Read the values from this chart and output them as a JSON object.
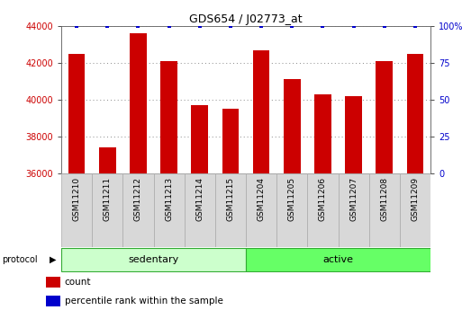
{
  "title": "GDS654 / J02773_at",
  "samples": [
    "GSM11210",
    "GSM11211",
    "GSM11212",
    "GSM11213",
    "GSM11214",
    "GSM11215",
    "GSM11204",
    "GSM11205",
    "GSM11206",
    "GSM11207",
    "GSM11208",
    "GSM11209"
  ],
  "counts": [
    42500,
    37400,
    43600,
    42100,
    39700,
    39500,
    42700,
    41100,
    40300,
    40200,
    42100,
    42500
  ],
  "percentile_ranks": [
    100,
    100,
    100,
    100,
    100,
    100,
    100,
    100,
    100,
    100,
    100,
    100
  ],
  "ylim_left": [
    36000,
    44000
  ],
  "ylim_right": [
    0,
    100
  ],
  "yticks_left": [
    36000,
    38000,
    40000,
    42000,
    44000
  ],
  "yticks_right": [
    0,
    25,
    50,
    75,
    100
  ],
  "bar_color": "#cc0000",
  "dot_color": "#0000cc",
  "groups": [
    {
      "label": "sedentary",
      "start": 0,
      "end": 6,
      "color": "#ccffcc"
    },
    {
      "label": "active",
      "start": 6,
      "end": 12,
      "color": "#66ff66"
    }
  ],
  "protocol_label": "protocol",
  "legend": [
    {
      "label": "count",
      "color": "#cc0000"
    },
    {
      "label": "percentile rank within the sample",
      "color": "#0000cc"
    }
  ],
  "background_color": "#ffffff",
  "grid_color": "#888888",
  "xtick_bg": "#d8d8d8",
  "xtick_border": "#aaaaaa"
}
